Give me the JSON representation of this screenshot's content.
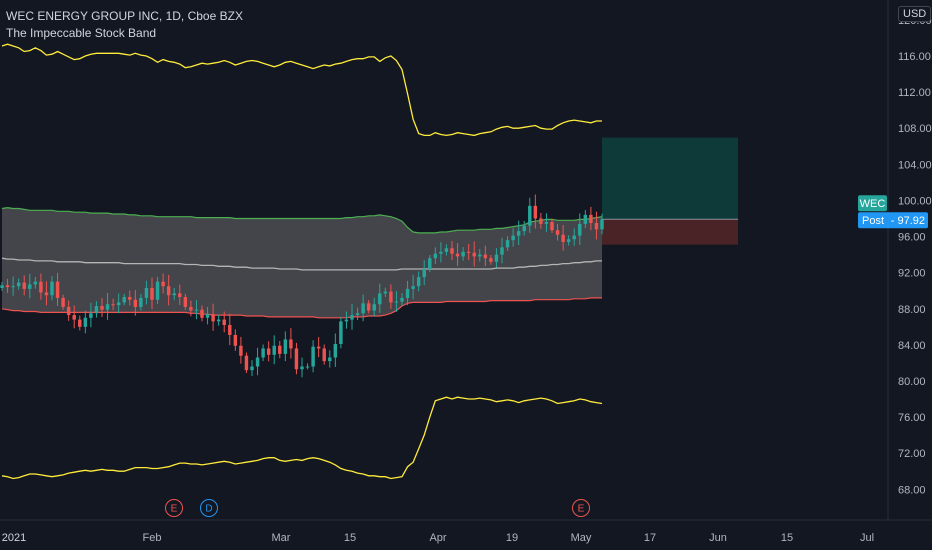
{
  "legend": {
    "title": "WEC ENERGY GROUP INC, 1D, Cboe BZX",
    "indicator": "The Impeccable Stock Band"
  },
  "currency": "USD",
  "symbol_label": "WEC",
  "price_label": {
    "prefix": "Post",
    "value": "97.92"
  },
  "colors": {
    "background": "#131722",
    "up": "#26a69a",
    "down": "#ef5350",
    "band_fill": "#4c4d52",
    "band_upper_line": "#4caf50",
    "band_lower_line": "#ef5350",
    "mid_line": "#b5b5b5",
    "outer_lines": "#ffeb3b",
    "target_zone": "#0e3a3a",
    "stop_zone": "#4a2327",
    "price_label": "#2196f3",
    "symbol_label": "#26a69a"
  },
  "chart_data": {
    "type": "candlestick",
    "y_axis": {
      "ticks": [
        "120.00",
        "116.00",
        "112.00",
        "108.00",
        "104.00",
        "100.00",
        "96.00",
        "92.00",
        "88.00",
        "84.00",
        "80.00",
        "76.00",
        "72.00",
        "68.00"
      ],
      "range": [
        64.6,
        122.2
      ]
    },
    "x_axis": {
      "ticks": [
        {
          "label": "2021",
          "strong": true
        },
        {
          "label": "Feb"
        },
        {
          "label": "Mar"
        },
        {
          "label": "15"
        },
        {
          "label": "Apr"
        },
        {
          "label": "19"
        },
        {
          "label": "May"
        },
        {
          "label": "17"
        },
        {
          "label": "Jun"
        },
        {
          "label": "15"
        },
        {
          "label": "Jul"
        }
      ]
    },
    "events": [
      {
        "letter": "E",
        "color": "#ef5350"
      },
      {
        "letter": "D",
        "color": "#2196f3"
      },
      {
        "letter": "E",
        "color": "#ef5350"
      }
    ],
    "series": {
      "close": [
        90.6,
        90.4,
        90.5,
        90.9,
        90.2,
        90.7,
        91.0,
        89.8,
        89.5,
        91.0,
        89.2,
        88.2,
        87.3,
        86.8,
        86.0,
        87.0,
        87.5,
        88.3,
        87.9,
        88.5,
        88.4,
        88.7,
        89.3,
        89.0,
        88.2,
        89.2,
        90.3,
        89.0,
        91.0,
        90.5,
        89.5,
        89.7,
        89.3,
        88.2,
        87.8,
        87.9,
        87.0,
        87.4,
        86.6,
        86.8,
        86.2,
        85.1,
        83.9,
        82.8,
        81.2,
        81.6,
        82.6,
        83.6,
        82.9,
        83.9,
        83.0,
        84.6,
        83.6,
        81.3,
        81.6,
        81.6,
        83.8,
        83.6,
        82.2,
        82.6,
        84.1,
        86.6,
        86.8,
        87.3,
        87.5,
        88.6,
        87.8,
        88.5,
        89.7,
        89.9,
        88.7,
        88.8,
        89.2,
        90.2,
        90.5,
        91.5,
        92.4,
        93.6,
        94.1,
        94.3,
        94.7,
        94.1,
        93.8,
        94.3,
        94.2,
        93.8,
        94.0,
        93.6,
        93.2,
        94.0,
        94.8,
        95.6,
        96.1,
        96.6,
        97.2,
        99.4,
        98.0,
        97.4,
        97.6,
        96.7,
        96.2,
        95.4,
        95.7,
        96.1,
        97.4,
        98.4,
        97.5,
        96.8,
        97.9
      ]
    },
    "band_top": [
      99.1,
      99.2,
      99.1,
      99.1,
      99.0,
      98.9,
      98.9,
      98.9,
      98.9,
      98.9,
      98.8,
      98.8,
      98.8,
      98.7,
      98.7,
      98.7,
      98.6,
      98.6,
      98.6,
      98.6,
      98.5,
      98.5,
      98.5,
      98.4,
      98.4,
      98.3,
      98.3,
      98.3,
      98.2,
      98.2,
      98.2,
      98.2,
      98.2,
      98.2,
      98.2,
      98.1,
      98.1,
      98.1,
      98.1,
      98.1,
      98.1,
      98.1,
      98.0,
      98.0,
      98.0,
      98.0,
      98.0,
      98.0,
      98.0,
      98.0,
      98.0,
      98.0,
      98.0,
      98.0,
      98.0,
      98.0,
      98.0,
      98.0,
      98.0,
      98.0,
      98.0,
      98.0,
      98.1,
      98.1,
      98.2,
      98.2,
      98.3,
      98.3,
      98.4,
      98.3,
      98.2,
      98.0,
      97.7,
      97.0,
      96.5,
      96.4,
      96.4,
      96.4,
      96.4,
      96.5,
      96.5,
      96.6,
      96.7,
      96.7,
      96.7,
      96.7,
      96.8,
      96.8,
      96.8,
      96.9,
      96.9,
      97.0,
      97.1,
      97.2,
      97.3,
      97.6,
      97.7,
      97.8,
      97.9,
      97.9,
      97.8,
      97.8,
      97.8,
      97.8,
      97.9,
      97.9,
      98.0,
      98.1,
      98.2
    ],
    "band_mid": [
      93.6,
      93.5,
      93.5,
      93.4,
      93.4,
      93.4,
      93.3,
      93.3,
      93.3,
      93.3,
      93.2,
      93.2,
      93.2,
      93.2,
      93.2,
      93.1,
      93.1,
      93.1,
      93.1,
      93.1,
      93.1,
      93.1,
      93.0,
      93.0,
      93.0,
      93.0,
      93.0,
      93.0,
      93.0,
      93.0,
      93.0,
      93.0,
      93.0,
      92.9,
      92.9,
      92.9,
      92.8,
      92.8,
      92.8,
      92.7,
      92.7,
      92.7,
      92.6,
      92.6,
      92.6,
      92.5,
      92.5,
      92.5,
      92.5,
      92.5,
      92.4,
      92.4,
      92.4,
      92.4,
      92.3,
      92.3,
      92.3,
      92.3,
      92.3,
      92.3,
      92.3,
      92.3,
      92.3,
      92.3,
      92.3,
      92.3,
      92.3,
      92.3,
      92.3,
      92.3,
      92.3,
      92.3,
      92.4,
      92.4,
      92.4,
      92.4,
      92.4,
      92.4,
      92.4,
      92.4,
      92.4,
      92.4,
      92.4,
      92.4,
      92.4,
      92.4,
      92.4,
      92.4,
      92.4,
      92.5,
      92.5,
      92.5,
      92.5,
      92.6,
      92.6,
      92.7,
      92.7,
      92.8,
      92.8,
      92.9,
      92.9,
      93.0,
      93.0,
      93.1,
      93.1,
      93.2,
      93.2,
      93.3,
      93.3
    ],
    "band_bottom": [
      88.0,
      87.9,
      87.8,
      87.8,
      87.7,
      87.7,
      87.7,
      87.6,
      87.6,
      87.6,
      87.6,
      87.6,
      87.6,
      87.6,
      87.6,
      87.6,
      87.6,
      87.6,
      87.6,
      87.6,
      87.6,
      87.6,
      87.6,
      87.6,
      87.6,
      87.6,
      87.6,
      87.6,
      87.6,
      87.6,
      87.6,
      87.6,
      87.6,
      87.6,
      87.5,
      87.5,
      87.4,
      87.4,
      87.3,
      87.3,
      87.3,
      87.3,
      87.3,
      87.3,
      87.2,
      87.2,
      87.2,
      87.2,
      87.1,
      87.1,
      87.1,
      87.1,
      87.1,
      87.1,
      87.1,
      87.1,
      87.1,
      87.0,
      87.0,
      87.0,
      87.0,
      87.0,
      87.0,
      87.1,
      87.1,
      87.1,
      87.2,
      87.2,
      87.2,
      87.3,
      87.5,
      87.8,
      88.3,
      88.6,
      88.7,
      88.7,
      88.7,
      88.7,
      88.7,
      88.7,
      88.8,
      88.8,
      88.8,
      88.8,
      88.8,
      88.8,
      88.8,
      88.8,
      88.9,
      88.9,
      88.9,
      88.9,
      88.9,
      88.9,
      88.9,
      88.9,
      89.0,
      89.0,
      89.0,
      89.0,
      89.0,
      89.0,
      89.0,
      89.1,
      89.1,
      89.1,
      89.2,
      89.2,
      89.2
    ],
    "outer_upper": [
      117.1,
      117.3,
      117.1,
      116.9,
      116.5,
      116.6,
      116.9,
      116.6,
      116.1,
      116.2,
      116.5,
      116.2,
      115.9,
      115.6,
      115.7,
      116.0,
      116.2,
      116.3,
      116.3,
      116.3,
      116.3,
      116.3,
      116.2,
      116.1,
      116.3,
      116.1,
      116.0,
      115.7,
      115.3,
      115.6,
      115.4,
      115.3,
      115.1,
      114.7,
      114.8,
      115.0,
      115.2,
      115.1,
      115.2,
      115.3,
      115.5,
      115.3,
      115.0,
      115.2,
      115.4,
      115.5,
      115.4,
      115.2,
      115.0,
      114.8,
      115.0,
      115.3,
      115.4,
      115.2,
      115.0,
      114.8,
      114.6,
      114.8,
      115.0,
      114.9,
      115.1,
      115.2,
      115.4,
      115.6,
      115.7,
      115.7,
      115.9,
      115.9,
      115.4,
      115.8,
      116.0,
      115.5,
      114.5,
      111.8,
      109.0,
      107.4,
      107.2,
      107.2,
      107.5,
      107.3,
      107.2,
      107.3,
      107.5,
      107.4,
      107.3,
      107.2,
      107.4,
      107.5,
      107.6,
      107.9,
      108.1,
      108.2,
      108.0,
      108.0,
      108.1,
      108.2,
      108.3,
      108.0,
      107.9,
      107.9,
      108.3,
      108.6,
      108.8,
      108.9,
      108.8,
      108.7,
      108.6,
      108.8,
      108.8
    ],
    "outer_lower": [
      69.5,
      69.4,
      69.2,
      69.3,
      69.5,
      69.7,
      69.7,
      69.6,
      69.5,
      69.4,
      69.5,
      69.6,
      69.8,
      69.9,
      70.0,
      70.1,
      70.0,
      70.1,
      70.2,
      70.1,
      70.1,
      70.0,
      70.0,
      70.2,
      70.4,
      70.4,
      70.4,
      70.3,
      70.3,
      70.4,
      70.5,
      70.7,
      70.9,
      70.9,
      70.8,
      70.8,
      70.7,
      70.8,
      70.9,
      71.0,
      71.1,
      71.0,
      70.8,
      70.9,
      71.0,
      71.1,
      71.2,
      71.4,
      71.5,
      71.5,
      71.2,
      71.1,
      71.2,
      71.3,
      71.2,
      71.4,
      71.5,
      71.4,
      71.2,
      71.0,
      70.7,
      70.3,
      70.1,
      70.0,
      69.8,
      69.7,
      69.5,
      69.5,
      69.4,
      69.4,
      69.2,
      69.3,
      69.4,
      70.5,
      71.0,
      72.5,
      74.0,
      76.0,
      77.8,
      78.0,
      78.2,
      78.0,
      78.2,
      78.1,
      78.0,
      78.0,
      78.1,
      78.0,
      77.9,
      77.7,
      77.8,
      77.9,
      77.8,
      77.6,
      77.8,
      77.9,
      78.0,
      78.1,
      78.0,
      77.8,
      77.5,
      77.6,
      77.7,
      77.8,
      78.0,
      77.9,
      77.7,
      77.6,
      77.5
    ],
    "position": {
      "entry": 97.92,
      "target": 106.96,
      "stop": 95.1
    }
  }
}
